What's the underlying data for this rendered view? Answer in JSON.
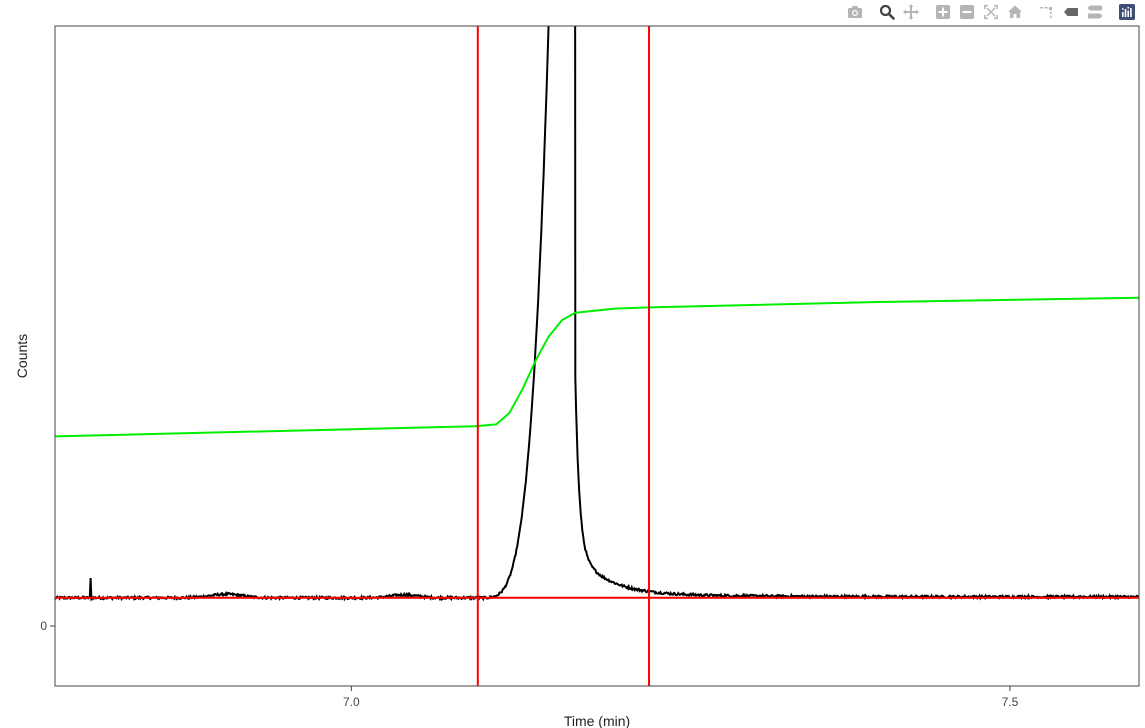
{
  "toolbar": {
    "buttons": [
      {
        "name": "camera-icon",
        "title": "Download plot as a png"
      },
      {
        "name": "zoom-icon",
        "title": "Zoom"
      },
      {
        "name": "pan-icon",
        "title": "Pan"
      },
      {
        "name": "zoom-in-icon",
        "title": "Zoom in"
      },
      {
        "name": "zoom-out-icon",
        "title": "Zoom out"
      },
      {
        "name": "autoscale-icon",
        "title": "Autoscale"
      },
      {
        "name": "home-icon",
        "title": "Reset axes"
      },
      {
        "name": "spike-lines-icon",
        "title": "Toggle Spike Lines"
      },
      {
        "name": "hover-closest-icon",
        "title": "Show closest data on hover"
      },
      {
        "name": "hover-compare-icon",
        "title": "Compare data on hover"
      },
      {
        "name": "plotly-logo-icon",
        "title": "Produced with Plotly"
      }
    ],
    "icon_color": "#b5b5b5",
    "active_color": "#444444",
    "logo_color": "#3f4f75"
  },
  "chart_data": {
    "type": "line",
    "xlabel": "Time (min)",
    "ylabel": "Counts",
    "xlim": [
      6.775,
      7.598
    ],
    "ylim": [
      -100,
      1000
    ],
    "x_ticks": [
      {
        "value": 7.0,
        "label": "7.0"
      },
      {
        "value": 7.5,
        "label": "7.5"
      }
    ],
    "y_ticks": [
      {
        "value": 0,
        "label": "0"
      }
    ],
    "grid": false,
    "series": [
      {
        "role": "chromatogram",
        "color": "#000000",
        "baseline": 47,
        "noise": 2,
        "peaks": [
          {
            "x": 6.905,
            "height": 6,
            "width": 0.012
          },
          {
            "x": 7.04,
            "height": 5,
            "width": 0.01
          }
        ],
        "spike": {
          "x": 6.802,
          "y": 80
        },
        "main_peak": {
          "x_start": 7.097,
          "x_apex": 7.17,
          "x_end": 7.598,
          "apex": 3500,
          "tail_level": 1.5
        }
      },
      {
        "role": "integral",
        "color": "#00ee00",
        "points": [
          [
            6.775,
            316
          ],
          [
            7.094,
            333
          ],
          [
            7.11,
            336
          ],
          [
            7.12,
            355
          ],
          [
            7.13,
            395
          ],
          [
            7.14,
            443
          ],
          [
            7.15,
            483
          ],
          [
            7.16,
            510
          ],
          [
            7.17,
            522
          ],
          [
            7.2,
            529
          ],
          [
            7.226,
            531
          ],
          [
            7.4,
            540
          ],
          [
            7.598,
            547
          ]
        ]
      },
      {
        "role": "baseline",
        "color": "#ff0000",
        "points": [
          [
            6.775,
            47
          ],
          [
            7.598,
            47
          ]
        ]
      }
    ],
    "markers": [
      {
        "role": "integration-start",
        "x": 7.096,
        "color": "#ff0000"
      },
      {
        "role": "integration-end",
        "x": 7.226,
        "color": "#ff0000"
      }
    ]
  }
}
